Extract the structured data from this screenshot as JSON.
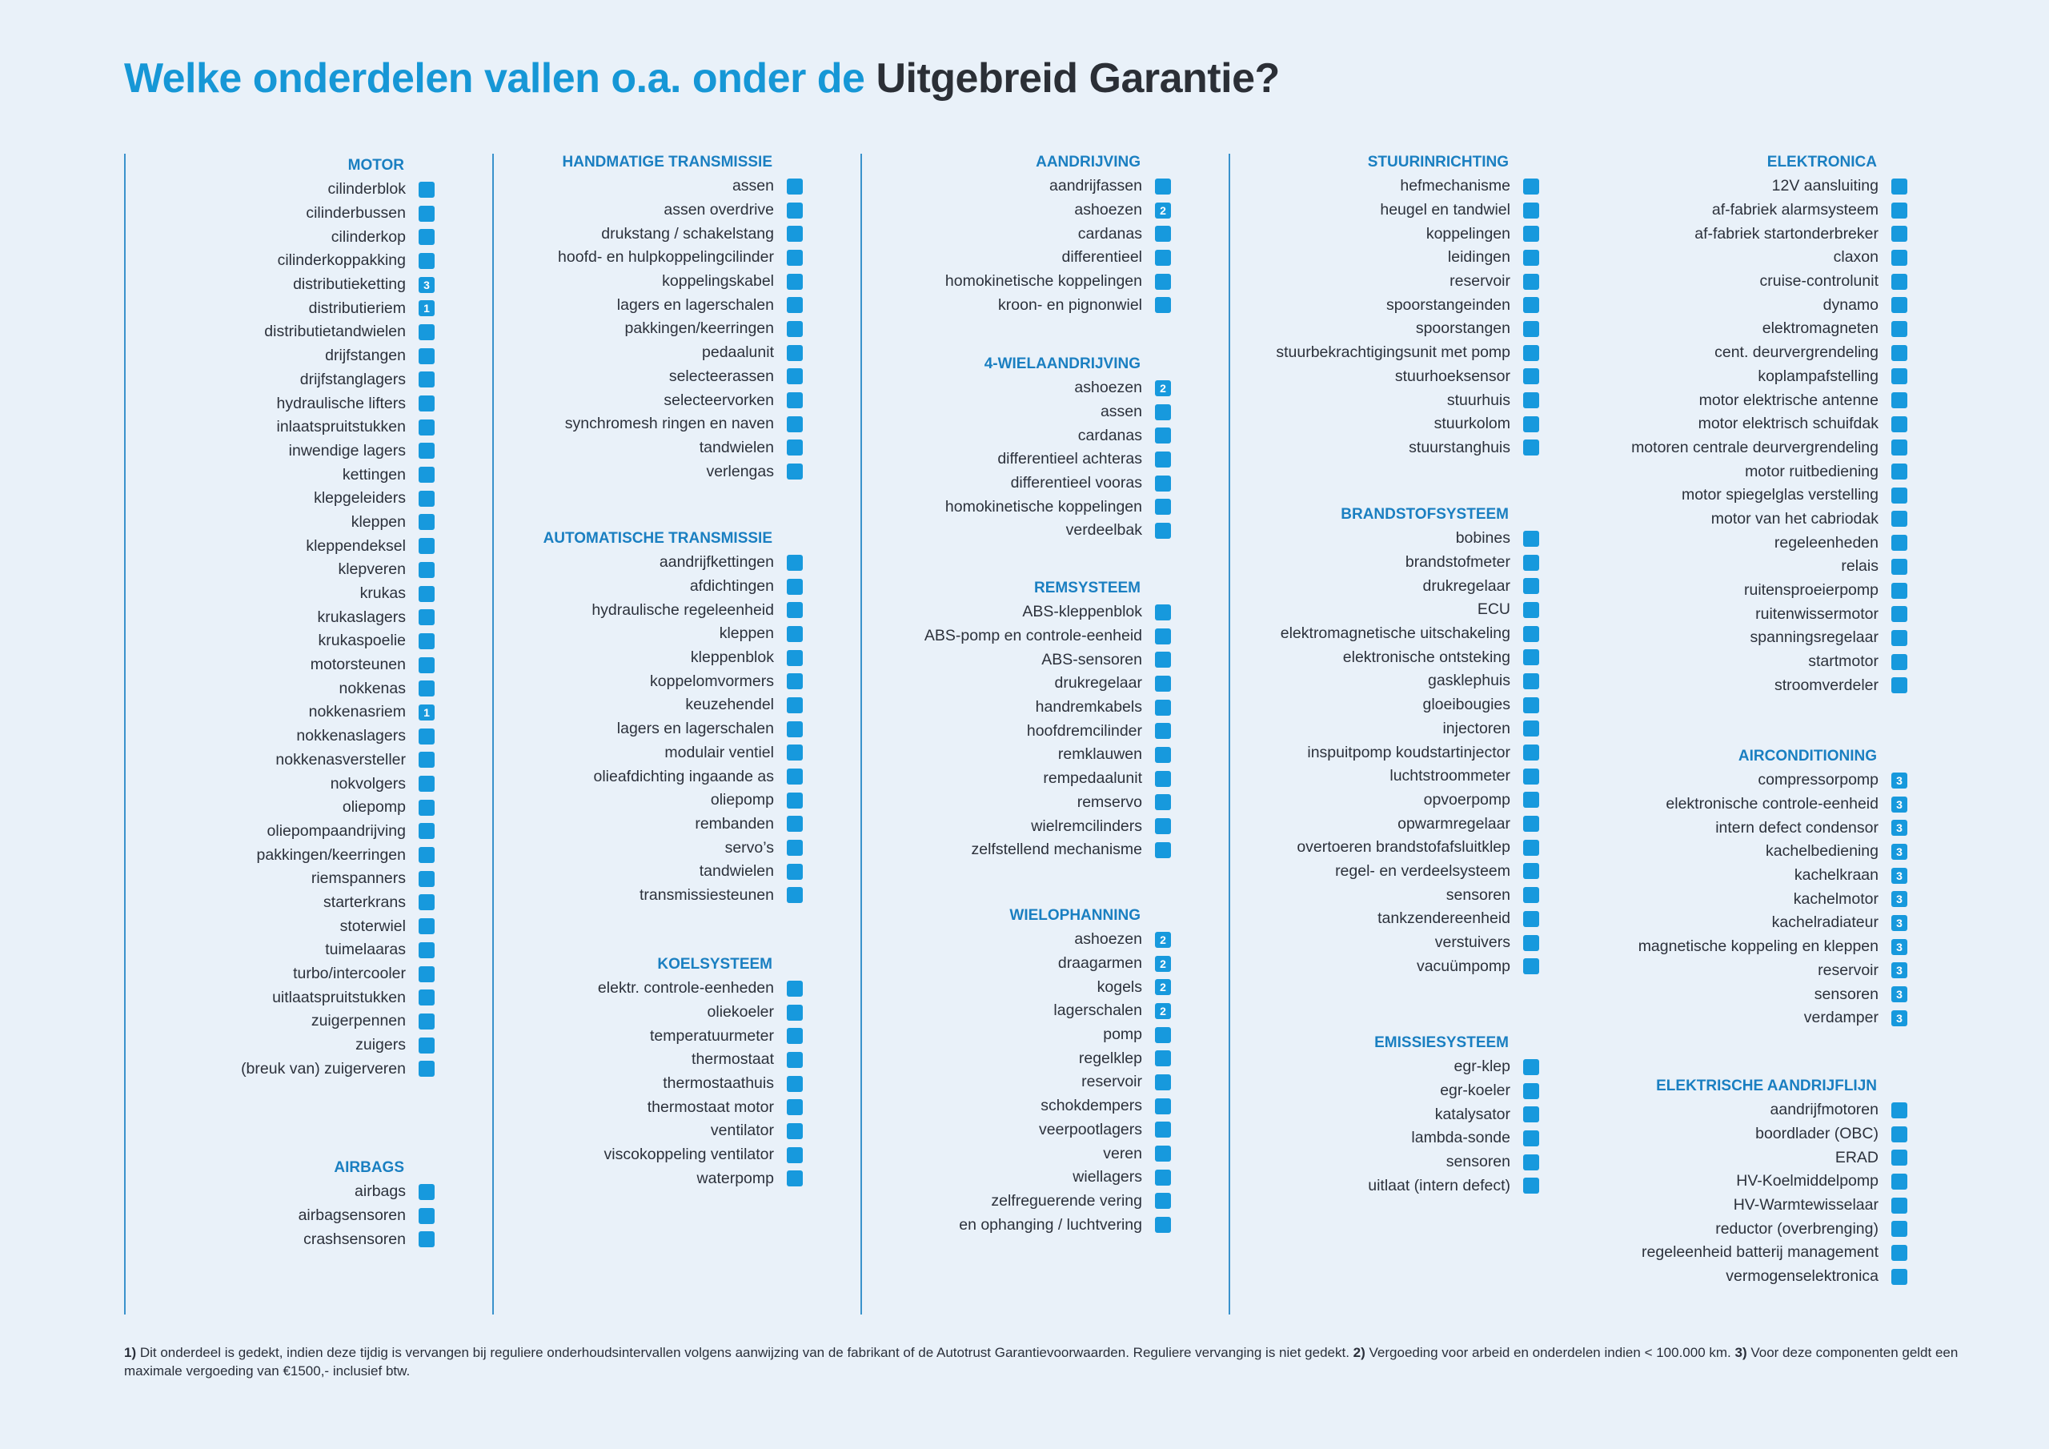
{
  "title": {
    "blue": "Welke onderdelen vallen o.a. onder de",
    "dark": "Uitgebreid Garantie?"
  },
  "sections": {
    "motor": {
      "title": "MOTOR",
      "items": [
        {
          "label": "cilinderblok",
          "badge": ""
        },
        {
          "label": "cilinderbussen",
          "badge": ""
        },
        {
          "label": "cilinderkop",
          "badge": ""
        },
        {
          "label": "cilinderkoppakking",
          "badge": ""
        },
        {
          "label": "distributieketting",
          "badge": "3"
        },
        {
          "label": "distributieriem",
          "badge": "1"
        },
        {
          "label": "distributietandwielen",
          "badge": ""
        },
        {
          "label": "drijfstangen",
          "badge": ""
        },
        {
          "label": "drijfstanglagers",
          "badge": ""
        },
        {
          "label": "hydraulische lifters",
          "badge": ""
        },
        {
          "label": "inlaatspruitstukken",
          "badge": ""
        },
        {
          "label": "inwendige lagers",
          "badge": ""
        },
        {
          "label": "kettingen",
          "badge": ""
        },
        {
          "label": "klepgeleiders",
          "badge": ""
        },
        {
          "label": "kleppen",
          "badge": ""
        },
        {
          "label": "kleppendeksel",
          "badge": ""
        },
        {
          "label": "klepveren",
          "badge": ""
        },
        {
          "label": "krukas",
          "badge": ""
        },
        {
          "label": "krukaslagers",
          "badge": ""
        },
        {
          "label": "krukaspoelie",
          "badge": ""
        },
        {
          "label": "motorsteunen",
          "badge": ""
        },
        {
          "label": "nokkenas",
          "badge": ""
        },
        {
          "label": "nokkenasriem",
          "badge": "1"
        },
        {
          "label": "nokkenaslagers",
          "badge": ""
        },
        {
          "label": "nokkenasversteller",
          "badge": ""
        },
        {
          "label": "nokvolgers",
          "badge": ""
        },
        {
          "label": "oliepomp",
          "badge": ""
        },
        {
          "label": "oliepompaandrijving",
          "badge": ""
        },
        {
          "label": "pakkingen/keerringen",
          "badge": ""
        },
        {
          "label": "riemspanners",
          "badge": ""
        },
        {
          "label": "starterkrans",
          "badge": ""
        },
        {
          "label": "stoterwiel",
          "badge": ""
        },
        {
          "label": "tuimelaaras",
          "badge": ""
        },
        {
          "label": "turbo/intercooler",
          "badge": ""
        },
        {
          "label": "uitlaatspruitstukken",
          "badge": ""
        },
        {
          "label": "zuigerpennen",
          "badge": ""
        },
        {
          "label": "zuigers",
          "badge": ""
        },
        {
          "label": "(breuk van) zuigerveren",
          "badge": ""
        }
      ]
    },
    "airbags": {
      "title": "AIRBAGS",
      "items": [
        {
          "label": "airbags",
          "badge": ""
        },
        {
          "label": "airbagsensoren",
          "badge": ""
        },
        {
          "label": "crashsensoren",
          "badge": ""
        }
      ]
    },
    "handmatige": {
      "title": "HANDMATIGE TRANSMISSIE",
      "items": [
        {
          "label": "assen",
          "badge": ""
        },
        {
          "label": "assen overdrive",
          "badge": ""
        },
        {
          "label": "drukstang / schakelstang",
          "badge": ""
        },
        {
          "label": "hoofd- en hulpkoppelingcilinder",
          "badge": ""
        },
        {
          "label": "koppelingskabel",
          "badge": ""
        },
        {
          "label": "lagers en lagerschalen",
          "badge": ""
        },
        {
          "label": "pakkingen/keerringen",
          "badge": ""
        },
        {
          "label": "pedaalunit",
          "badge": ""
        },
        {
          "label": "selecteerassen",
          "badge": ""
        },
        {
          "label": "selecteervorken",
          "badge": ""
        },
        {
          "label": "synchromesh ringen en naven",
          "badge": ""
        },
        {
          "label": "tandwielen",
          "badge": ""
        },
        {
          "label": "verlengas",
          "badge": ""
        }
      ]
    },
    "automatische": {
      "title": "AUTOMATISCHE TRANSMISSIE",
      "items": [
        {
          "label": "aandrijfkettingen",
          "badge": ""
        },
        {
          "label": "afdichtingen",
          "badge": ""
        },
        {
          "label": "hydraulische regeleenheid",
          "badge": ""
        },
        {
          "label": "kleppen",
          "badge": ""
        },
        {
          "label": "kleppenblok",
          "badge": ""
        },
        {
          "label": "koppelomvormers",
          "badge": ""
        },
        {
          "label": "keuzehendel",
          "badge": ""
        },
        {
          "label": "lagers en lagerschalen",
          "badge": ""
        },
        {
          "label": "modulair ventiel",
          "badge": ""
        },
        {
          "label": "olieafdichting ingaande as",
          "badge": ""
        },
        {
          "label": "oliepomp",
          "badge": ""
        },
        {
          "label": "rembanden",
          "badge": ""
        },
        {
          "label": "servo’s",
          "badge": ""
        },
        {
          "label": "tandwielen",
          "badge": ""
        },
        {
          "label": "transmissiesteunen",
          "badge": ""
        }
      ]
    },
    "koelsysteem": {
      "title": "KOELSYSTEEM",
      "items": [
        {
          "label": "elektr. controle-eenheden",
          "badge": ""
        },
        {
          "label": "oliekoeler",
          "badge": ""
        },
        {
          "label": "temperatuurmeter",
          "badge": ""
        },
        {
          "label": "thermostaat",
          "badge": ""
        },
        {
          "label": "thermostaathuis",
          "badge": ""
        },
        {
          "label": "thermostaat motor",
          "badge": ""
        },
        {
          "label": "ventilator",
          "badge": ""
        },
        {
          "label": "viscokoppeling ventilator",
          "badge": ""
        },
        {
          "label": "waterpomp",
          "badge": ""
        }
      ]
    },
    "aandrijving": {
      "title": "AANDRIJVING",
      "items": [
        {
          "label": "aandrijfassen",
          "badge": ""
        },
        {
          "label": "ashoezen",
          "badge": "2"
        },
        {
          "label": "cardanas",
          "badge": ""
        },
        {
          "label": "differentieel",
          "badge": ""
        },
        {
          "label": "homokinetische koppelingen",
          "badge": ""
        },
        {
          "label": "kroon- en pignonwiel",
          "badge": ""
        }
      ]
    },
    "vierwiel": {
      "title": "4-WIELAANDRIJVING",
      "items": [
        {
          "label": "ashoezen",
          "badge": "2"
        },
        {
          "label": "assen",
          "badge": ""
        },
        {
          "label": "cardanas",
          "badge": ""
        },
        {
          "label": "differentieel achteras",
          "badge": ""
        },
        {
          "label": "differentieel vooras",
          "badge": ""
        },
        {
          "label": "homokinetische koppelingen",
          "badge": ""
        },
        {
          "label": "verdeelbak",
          "badge": ""
        }
      ]
    },
    "remsysteem": {
      "title": "REMSYSTEEM",
      "items": [
        {
          "label": "ABS-kleppenblok",
          "badge": ""
        },
        {
          "label": "ABS-pomp en controle-eenheid",
          "badge": ""
        },
        {
          "label": "ABS-sensoren",
          "badge": ""
        },
        {
          "label": "drukregelaar",
          "badge": ""
        },
        {
          "label": "handremkabels",
          "badge": ""
        },
        {
          "label": "hoofdremcilinder",
          "badge": ""
        },
        {
          "label": "remklauwen",
          "badge": ""
        },
        {
          "label": "rempedaalunit",
          "badge": ""
        },
        {
          "label": "remservo",
          "badge": ""
        },
        {
          "label": "wielremcilinders",
          "badge": ""
        },
        {
          "label": "zelfstellend mechanisme",
          "badge": ""
        }
      ]
    },
    "wielophanning": {
      "title": "WIELOPHANNING",
      "items": [
        {
          "label": "ashoezen",
          "badge": "2"
        },
        {
          "label": "draagarmen",
          "badge": "2"
        },
        {
          "label": "kogels",
          "badge": "2"
        },
        {
          "label": "lagerschalen",
          "badge": "2"
        },
        {
          "label": "pomp",
          "badge": ""
        },
        {
          "label": "regelklep",
          "badge": ""
        },
        {
          "label": "reservoir",
          "badge": ""
        },
        {
          "label": "schokdempers",
          "badge": ""
        },
        {
          "label": "veerpootlagers",
          "badge": ""
        },
        {
          "label": "veren",
          "badge": ""
        },
        {
          "label": "wiellagers",
          "badge": ""
        },
        {
          "label": "zelfreguerende vering",
          "badge": ""
        },
        {
          "label": "en ophanging / luchtvering",
          "badge": ""
        }
      ]
    },
    "stuurinrichting": {
      "title": "STUURINRICHTING",
      "items": [
        {
          "label": "hefmechanisme",
          "badge": ""
        },
        {
          "label": "heugel en tandwiel",
          "badge": ""
        },
        {
          "label": "koppelingen",
          "badge": ""
        },
        {
          "label": "leidingen",
          "badge": ""
        },
        {
          "label": "reservoir",
          "badge": ""
        },
        {
          "label": "spoorstangeinden",
          "badge": ""
        },
        {
          "label": "spoorstangen",
          "badge": ""
        },
        {
          "label": "stuurbekrachtigingsunit met pomp",
          "badge": ""
        },
        {
          "label": "stuurhoeksensor",
          "badge": ""
        },
        {
          "label": "stuurhuis",
          "badge": ""
        },
        {
          "label": "stuurkolom",
          "badge": ""
        },
        {
          "label": "stuurstanghuis",
          "badge": ""
        }
      ]
    },
    "brandstof": {
      "title": "BRANDSTOFSYSTEEM",
      "items": [
        {
          "label": "bobines",
          "badge": ""
        },
        {
          "label": "brandstofmeter",
          "badge": ""
        },
        {
          "label": "drukregelaar",
          "badge": ""
        },
        {
          "label": "ECU",
          "badge": ""
        },
        {
          "label": "elektromagnetische uitschakeling",
          "badge": ""
        },
        {
          "label": "elektronische ontsteking",
          "badge": ""
        },
        {
          "label": "gasklephuis",
          "badge": ""
        },
        {
          "label": "gloeibougies",
          "badge": ""
        },
        {
          "label": "injectoren",
          "badge": ""
        },
        {
          "label": "inspuitpomp koudstartinjector",
          "badge": ""
        },
        {
          "label": "luchtstroommeter",
          "badge": ""
        },
        {
          "label": "opvoerpomp",
          "badge": ""
        },
        {
          "label": "opwarmregelaar",
          "badge": ""
        },
        {
          "label": "overtoeren brandstofafsluitklep",
          "badge": ""
        },
        {
          "label": "regel- en verdeelsysteem",
          "badge": ""
        },
        {
          "label": "sensoren",
          "badge": ""
        },
        {
          "label": "tankzendereenheid",
          "badge": ""
        },
        {
          "label": "verstuivers",
          "badge": ""
        },
        {
          "label": "vacuümpomp",
          "badge": ""
        }
      ]
    },
    "emissie": {
      "title": "EMISSIESYSTEEM",
      "items": [
        {
          "label": "egr-klep",
          "badge": ""
        },
        {
          "label": "egr-koeler",
          "badge": ""
        },
        {
          "label": "katalysator",
          "badge": ""
        },
        {
          "label": "lambda-sonde",
          "badge": ""
        },
        {
          "label": "sensoren",
          "badge": ""
        },
        {
          "label": "uitlaat (intern defect)",
          "badge": ""
        }
      ]
    },
    "elektronica": {
      "title": "ELEKTRONICA",
      "items": [
        {
          "label": "12V aansluiting",
          "badge": ""
        },
        {
          "label": "af-fabriek alarmsysteem",
          "badge": ""
        },
        {
          "label": "af-fabriek startonderbreker",
          "badge": ""
        },
        {
          "label": "claxon",
          "badge": ""
        },
        {
          "label": "cruise-controlunit",
          "badge": ""
        },
        {
          "label": "dynamo",
          "badge": ""
        },
        {
          "label": "elektromagneten",
          "badge": ""
        },
        {
          "label": "cent. deurvergrendeling",
          "badge": ""
        },
        {
          "label": "koplampafstelling",
          "badge": ""
        },
        {
          "label": "motor elektrische antenne",
          "badge": ""
        },
        {
          "label": "motor elektrisch schuifdak",
          "badge": ""
        },
        {
          "label": "motoren centrale deurvergrendeling",
          "badge": ""
        },
        {
          "label": "motor ruitbediening",
          "badge": ""
        },
        {
          "label": "motor spiegelglas verstelling",
          "badge": ""
        },
        {
          "label": "motor van het cabriodak",
          "badge": ""
        },
        {
          "label": "regeleenheden",
          "badge": ""
        },
        {
          "label": "relais",
          "badge": ""
        },
        {
          "label": "ruitensproeierpomp",
          "badge": ""
        },
        {
          "label": "ruitenwissermotor",
          "badge": ""
        },
        {
          "label": "spanningsregelaar",
          "badge": ""
        },
        {
          "label": "startmotor",
          "badge": ""
        },
        {
          "label": "stroomverdeler",
          "badge": ""
        }
      ]
    },
    "airco": {
      "title": "AIRCONDITIONING",
      "items": [
        {
          "label": "compressorpomp",
          "badge": "3"
        },
        {
          "label": "elektronische controle-eenheid",
          "badge": "3"
        },
        {
          "label": "intern defect condensor",
          "badge": "3"
        },
        {
          "label": "kachelbediening",
          "badge": "3"
        },
        {
          "label": "kachelkraan",
          "badge": "3"
        },
        {
          "label": "kachelmotor",
          "badge": "3"
        },
        {
          "label": "kachelradiateur",
          "badge": "3"
        },
        {
          "label": "magnetische koppeling en kleppen",
          "badge": "3"
        },
        {
          "label": "reservoir",
          "badge": "3"
        },
        {
          "label": "sensoren",
          "badge": "3"
        },
        {
          "label": "verdamper",
          "badge": "3"
        }
      ]
    },
    "elektrische": {
      "title": "ELEKTRISCHE AANDRIJFLIJN",
      "items": [
        {
          "label": "aandrijfmotoren",
          "badge": ""
        },
        {
          "label": "boordlader (OBC)",
          "badge": ""
        },
        {
          "label": "ERAD",
          "badge": ""
        },
        {
          "label": "HV-Koelmiddelpomp",
          "badge": ""
        },
        {
          "label": "HV-Warmtewisselaar",
          "badge": ""
        },
        {
          "label": "reductor (overbrenging)",
          "badge": ""
        },
        {
          "label": "regeleenheid batterij management",
          "badge": ""
        },
        {
          "label": "vermogenselektronica",
          "badge": ""
        }
      ]
    }
  },
  "footnote": {
    "m1": "1)",
    "t1": " Dit onderdeel is gedekt, indien deze tijdig is vervangen bij reguliere onderhoudsintervallen volgens aanwijzing van de fabrikant of de Autotrust Garantievoorwaarden. Reguliere vervanging is niet gedekt. ",
    "m2": "2)",
    "t2": " Vergoeding voor arbeid en onderdelen indien < 100.000 km. ",
    "m3": "3)",
    "t3": " Voor deze componenten geldt een maximale vergoeding van €1500,- inclusief btw."
  },
  "colors": {
    "accent": "#1697d6",
    "checkbox": "#1799dd",
    "background": "#e9f1f9",
    "divider": "#3a92cc"
  }
}
